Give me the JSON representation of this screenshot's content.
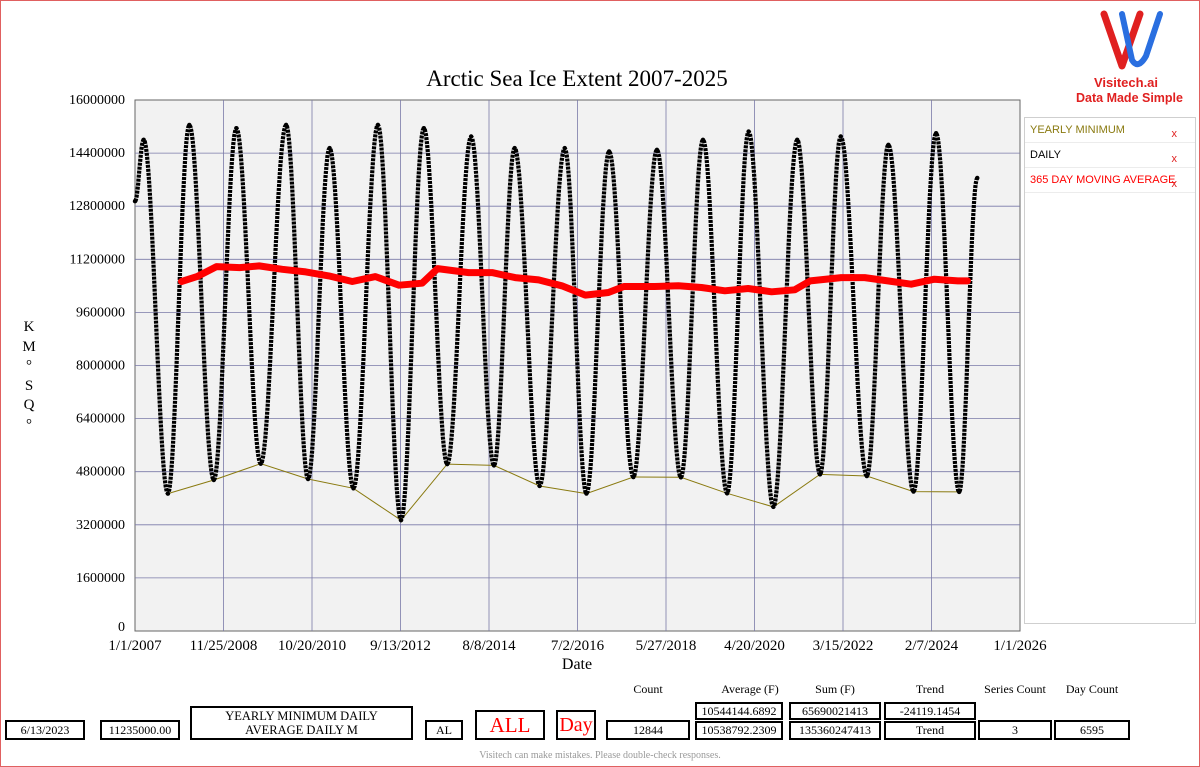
{
  "chart_data": {
    "type": "line",
    "title": "Arctic Sea Ice Extent 2007-2025",
    "xlabel": "Date",
    "ylabel": "KM°SQ°",
    "ylim": [
      0,
      16000000
    ],
    "y_ticks": [
      "0",
      "1600000",
      "3200000",
      "4800000",
      "6400000",
      "8000000",
      "9600000",
      "11200000",
      "12800000",
      "14400000",
      "16000000"
    ],
    "y_tick_values": [
      0,
      1600000,
      3200000,
      4800000,
      6400000,
      8000000,
      9600000,
      11200000,
      12800000,
      14400000,
      16000000
    ],
    "x_ticks": [
      "1/1/2007",
      "11/25/2008",
      "10/20/2010",
      "9/13/2012",
      "8/8/2014",
      "7/2/2016",
      "5/27/2018",
      "4/20/2020",
      "3/15/2022",
      "2/7/2024",
      "1/1/2026"
    ],
    "x_range": [
      "2007-01-01",
      "2026-01-01"
    ],
    "grid": true,
    "series": [
      {
        "name": "YEARLY MINIMUM",
        "color": "#8a7a10",
        "style": "thin-line",
        "points": [
          [
            "2007-09-16",
            4140000
          ],
          [
            "2008-09-10",
            4550000
          ],
          [
            "2009-09-13",
            5040000
          ],
          [
            "2010-09-19",
            4580000
          ],
          [
            "2011-09-10",
            4300000
          ],
          [
            "2012-09-17",
            3340000
          ],
          [
            "2013-09-14",
            5030000
          ],
          [
            "2014-09-16",
            4990000
          ],
          [
            "2015-09-09",
            4370000
          ],
          [
            "2016-09-10",
            4140000
          ],
          [
            "2017-09-13",
            4640000
          ],
          [
            "2018-09-21",
            4630000
          ],
          [
            "2019-09-18",
            4150000
          ],
          [
            "2020-09-15",
            3740000
          ],
          [
            "2021-09-16",
            4720000
          ],
          [
            "2022-09-18",
            4670000
          ],
          [
            "2023-09-19",
            4200000
          ],
          [
            "2024-09-11",
            4190000
          ]
        ]
      },
      {
        "name": "DAILY",
        "color": "#000000",
        "style": "dotted-thick",
        "seasonal_extremes": [
          [
            "2007-01-01",
            12950000
          ],
          [
            "2007-03-10",
            14800000
          ],
          [
            "2007-09-16",
            4140000
          ],
          [
            "2008-03-02",
            15250000
          ],
          [
            "2008-09-10",
            4550000
          ],
          [
            "2009-03-06",
            15150000
          ],
          [
            "2009-09-13",
            5040000
          ],
          [
            "2010-03-31",
            15250000
          ],
          [
            "2010-09-19",
            4580000
          ],
          [
            "2011-03-07",
            14550000
          ],
          [
            "2011-09-10",
            4300000
          ],
          [
            "2012-03-20",
            15250000
          ],
          [
            "2012-09-17",
            3340000
          ],
          [
            "2013-03-15",
            15150000
          ],
          [
            "2013-09-14",
            5030000
          ],
          [
            "2014-03-21",
            14900000
          ],
          [
            "2014-09-16",
            4990000
          ],
          [
            "2015-02-25",
            14550000
          ],
          [
            "2015-09-09",
            4370000
          ],
          [
            "2016-03-24",
            14550000
          ],
          [
            "2016-09-10",
            4140000
          ],
          [
            "2017-03-07",
            14450000
          ],
          [
            "2017-09-13",
            4640000
          ],
          [
            "2018-03-17",
            14500000
          ],
          [
            "2018-09-21",
            4630000
          ],
          [
            "2019-03-13",
            14800000
          ],
          [
            "2019-09-18",
            4150000
          ],
          [
            "2020-03-05",
            15050000
          ],
          [
            "2020-09-15",
            3740000
          ],
          [
            "2021-03-21",
            14800000
          ],
          [
            "2021-09-16",
            4720000
          ],
          [
            "2022-02-25",
            14900000
          ],
          [
            "2022-09-18",
            4670000
          ],
          [
            "2023-03-06",
            14650000
          ],
          [
            "2023-09-19",
            4200000
          ],
          [
            "2024-03-14",
            15000000
          ],
          [
            "2024-09-11",
            4190000
          ],
          [
            "2025-01-31",
            13650000
          ]
        ]
      },
      {
        "name": "365 DAY MOVING AVERAGE",
        "color": "#ff0000",
        "style": "thick-line",
        "points": [
          [
            "2008-01-01",
            10530000
          ],
          [
            "2008-05-01",
            10680000
          ],
          [
            "2008-10-01",
            10980000
          ],
          [
            "2009-04-01",
            10950000
          ],
          [
            "2009-09-01",
            11000000
          ],
          [
            "2010-03-01",
            10900000
          ],
          [
            "2010-09-01",
            10820000
          ],
          [
            "2011-03-01",
            10700000
          ],
          [
            "2011-09-01",
            10530000
          ],
          [
            "2012-03-01",
            10680000
          ],
          [
            "2012-09-01",
            10420000
          ],
          [
            "2013-03-01",
            10480000
          ],
          [
            "2013-07-01",
            10920000
          ],
          [
            "2014-03-01",
            10800000
          ],
          [
            "2014-09-01",
            10800000
          ],
          [
            "2015-03-01",
            10650000
          ],
          [
            "2015-09-01",
            10580000
          ],
          [
            "2016-03-01",
            10400000
          ],
          [
            "2016-09-01",
            10120000
          ],
          [
            "2017-03-01",
            10200000
          ],
          [
            "2017-07-01",
            10380000
          ],
          [
            "2018-03-01",
            10380000
          ],
          [
            "2018-09-01",
            10400000
          ],
          [
            "2019-03-01",
            10350000
          ],
          [
            "2019-09-01",
            10250000
          ],
          [
            "2020-03-01",
            10320000
          ],
          [
            "2020-09-01",
            10220000
          ],
          [
            "2021-03-01",
            10280000
          ],
          [
            "2021-07-01",
            10550000
          ],
          [
            "2022-03-01",
            10650000
          ],
          [
            "2022-09-01",
            10650000
          ],
          [
            "2023-03-01",
            10550000
          ],
          [
            "2023-09-01",
            10450000
          ],
          [
            "2024-03-01",
            10600000
          ],
          [
            "2024-09-01",
            10550000
          ],
          [
            "2024-11-15",
            10550000
          ]
        ]
      }
    ]
  },
  "legend": {
    "items": [
      {
        "label": "YEARLY MINIMUM",
        "color": "#8a7a10",
        "remove": "x"
      },
      {
        "label": "DAILY",
        "color": "#000000",
        "remove": "x"
      },
      {
        "label": "365 DAY MOVING AVERAGE",
        "color": "#ff0000",
        "remove": "x"
      }
    ],
    "placement": "right"
  },
  "logo": {
    "brand": "Visitech.ai",
    "tagline": "Data Made Simple",
    "icon": "v-logo-icon"
  },
  "controls": {
    "date_value": "6/13/2023",
    "value_field": "11235000.00",
    "series_select": "YEARLY MINIMUM DAILY AVERAGE DAILY M",
    "filter_short": "AL",
    "range_button": "ALL",
    "period_button": "Day",
    "count_header": "Count",
    "count_value": "12844",
    "average_header": "Average (F)",
    "average_values": [
      "10544144.6892",
      "10538792.2309"
    ],
    "sum_header": "Sum (F)",
    "sum_values": [
      "65690021413",
      "135360247413"
    ],
    "trend_header": "Trend",
    "trend_values": [
      "-24119.1454",
      "Trend"
    ],
    "series_count_header": "Series Count",
    "series_count_value": "3",
    "day_count_header": "Day Count",
    "day_count_value": "6595"
  },
  "footer": {
    "text": "Visitech can make mistakes. Please double-check responses."
  },
  "colors": {
    "accent": "#e02020",
    "logo_blue": "#2a6fe0",
    "grid": "#7a7aa8",
    "plot_bg": "#f2f2f2"
  }
}
